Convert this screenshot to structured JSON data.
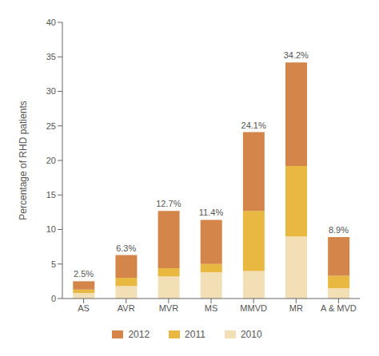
{
  "chart_data": {
    "type": "bar",
    "categories": [
      "AS",
      "AVR",
      "MVR",
      "MS",
      "MMVD",
      "MR",
      "A & MVD"
    ],
    "series": [
      {
        "name": "2010",
        "color": "#F2DFB5",
        "values": [
          0.8,
          1.8,
          3.2,
          3.8,
          4.0,
          9.0,
          1.5
        ]
      },
      {
        "name": "2011",
        "color": "#E8B840",
        "values": [
          0.5,
          1.2,
          1.2,
          1.2,
          8.7,
          10.2,
          1.8
        ]
      },
      {
        "name": "2012",
        "color": "#D4854A",
        "values": [
          1.2,
          3.3,
          8.3,
          6.4,
          11.4,
          15.0,
          5.6
        ]
      }
    ],
    "totals": [
      2.5,
      6.3,
      12.7,
      11.4,
      24.1,
      34.2,
      8.9
    ],
    "total_labels": [
      "2.5%",
      "6.3%",
      "12.7%",
      "11.4%",
      "24.1%",
      "34.2%",
      "8.9%"
    ],
    "ylabel": "Percentage of RHD patients",
    "ylim": [
      0,
      40
    ],
    "yticks": [
      0,
      5,
      10,
      15,
      20,
      25,
      30,
      35,
      40
    ],
    "stacked": true,
    "grid": false,
    "legend": "bottom"
  }
}
